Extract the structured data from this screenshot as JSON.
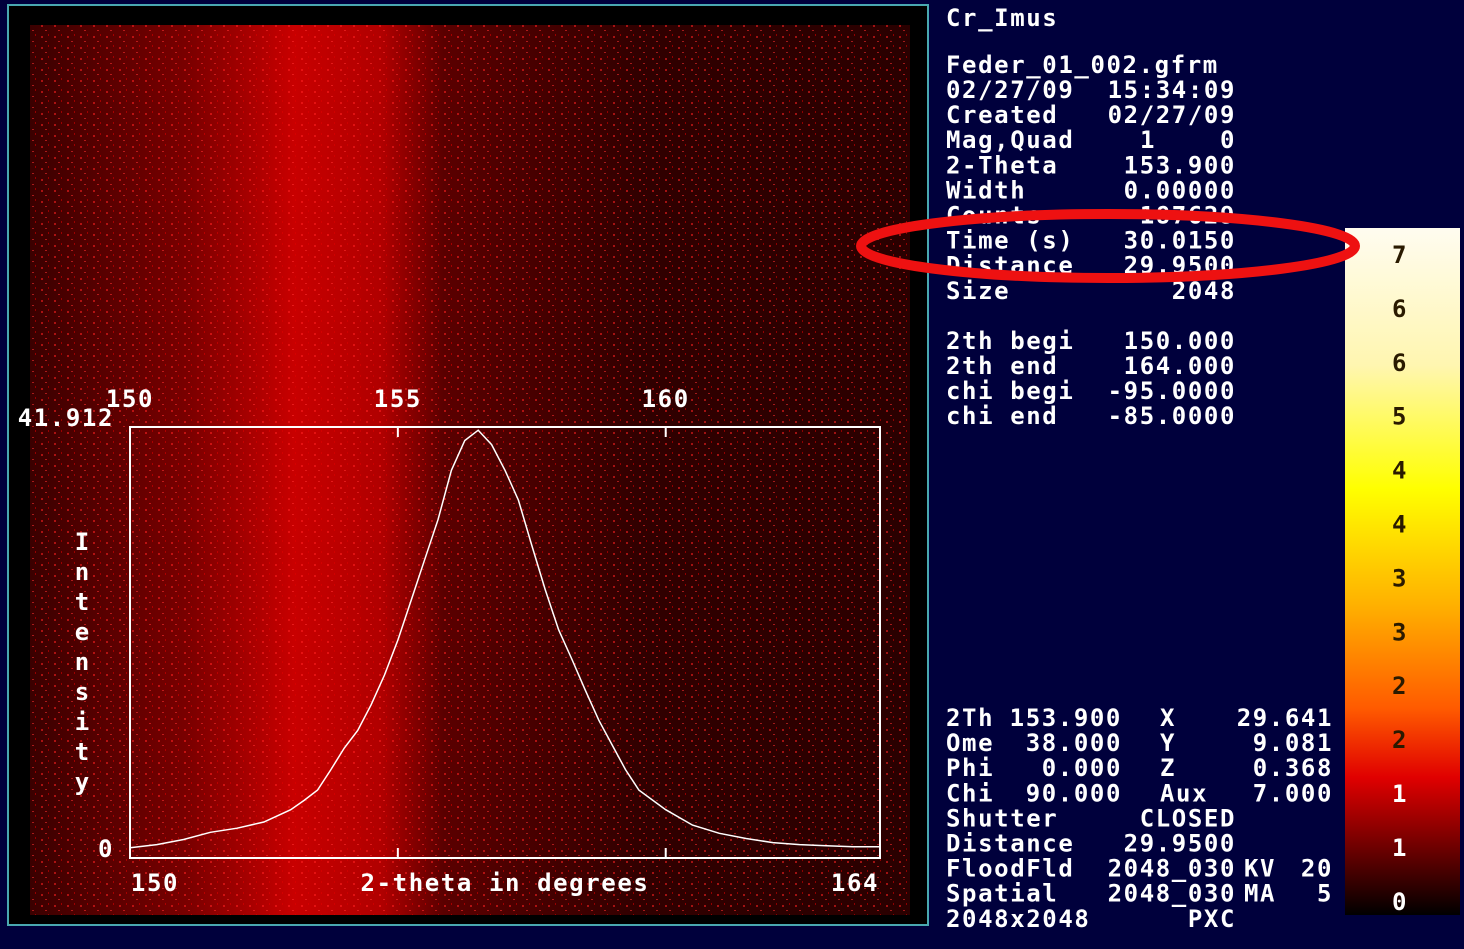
{
  "frame_info": {
    "title": "Cr_Imus",
    "file": "Feder_01_002.gfrm",
    "rows": [
      [
        "02/27/09",
        "15:34:09"
      ],
      [
        "Created",
        "02/27/09"
      ],
      [
        "Mag,Quad",
        "1",
        "0"
      ],
      [
        "2-Theta",
        "153.900"
      ],
      [
        "Width",
        "0.00000"
      ],
      [
        "Counts",
        "187629"
      ],
      [
        "Time (s)",
        "30.0150"
      ],
      [
        "Distance",
        "29.9500"
      ],
      [
        "Size",
        "2048"
      ]
    ]
  },
  "range_info": {
    "rows": [
      [
        "2th begi",
        "150.000"
      ],
      [
        "2th end",
        "164.000"
      ],
      [
        "chi begi",
        "-95.0000"
      ],
      [
        "chi end",
        "-85.0000"
      ]
    ]
  },
  "status": {
    "rows": [
      [
        "2Th",
        "153.900",
        "X",
        "29.641"
      ],
      [
        "Ome",
        "38.000",
        "Y",
        "9.081"
      ],
      [
        "Phi",
        "0.000",
        "Z",
        "0.368"
      ],
      [
        "Chi",
        "90.000",
        "Aux",
        "7.000"
      ],
      [
        "Shutter",
        "CLOSED"
      ],
      [
        "Distance",
        "29.9500"
      ],
      [
        "FloodFld",
        "2048_030",
        "KV",
        "20"
      ],
      [
        "Spatial",
        "2048_030",
        "MA",
        "5"
      ],
      [
        "2048x2048",
        "PXC"
      ]
    ]
  },
  "color_scale": {
    "labels": [
      "7",
      "6",
      "6",
      "5",
      "4",
      "4",
      "3",
      "3",
      "2",
      "2",
      "1",
      "1",
      "0"
    ]
  },
  "chart_data": {
    "type": "line",
    "xlabel": "2-theta in degrees",
    "ylabel": "Intensity",
    "x": [
      150,
      150.5,
      151,
      151.5,
      152,
      152.5,
      153,
      153.25,
      153.5,
      153.75,
      154,
      154.25,
      154.5,
      154.75,
      155,
      155.25,
      155.5,
      155.75,
      156,
      156.25,
      156.5,
      156.75,
      157,
      157.25,
      157.5,
      157.75,
      158,
      158.25,
      158.5,
      158.75,
      159,
      159.25,
      159.5,
      160,
      160.5,
      161,
      161.5,
      162,
      162.5,
      163,
      163.5,
      164
    ],
    "series": [
      {
        "color": "#ffffff",
        "values": [
          1.0,
          1.3,
          1.8,
          2.5,
          2.9,
          3.5,
          4.7,
          5.6,
          6.6,
          8.6,
          10.7,
          12.4,
          14.9,
          17.8,
          21.2,
          25.1,
          29.0,
          32.9,
          37.7,
          40.6,
          41.6,
          40.2,
          37.7,
          34.8,
          30.4,
          26.1,
          22.2,
          19.3,
          16.3,
          13.4,
          11.0,
          8.6,
          6.6,
          4.7,
          3.2,
          2.4,
          1.9,
          1.5,
          1.3,
          1.2,
          1.1,
          1.1
        ]
      }
    ],
    "xlim": [
      150,
      164
    ],
    "xticks": [
      150,
      155,
      160
    ],
    "ylim": [
      0,
      41.912
    ],
    "yticks": [
      0,
      41.912
    ]
  }
}
